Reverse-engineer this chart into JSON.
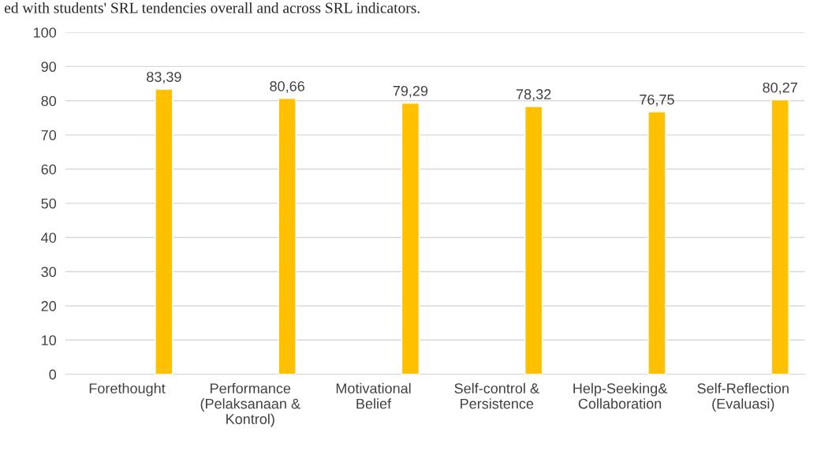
{
  "chart_data": {
    "type": "bar",
    "categories": [
      "Forethought",
      "Performance\n(Pelaksanaan &\nKontrol)",
      "Motivational\nBelief",
      "Self-control &\nPersistence",
      "Help-Seeking&\nCollaboration",
      "Self-Reflection\n(Evaluasi)"
    ],
    "values": [
      83.39,
      80.66,
      79.29,
      78.32,
      76.75,
      80.27
    ],
    "value_labels": [
      "83,39",
      "80,66",
      "79,29",
      "78,32",
      "76,75",
      "80,27"
    ],
    "color": "#ffc000",
    "ylim": [
      0,
      100
    ],
    "yticks": [
      0,
      10,
      20,
      30,
      40,
      50,
      60,
      70,
      80,
      90,
      100
    ],
    "grid": "y",
    "annotations": [
      "ed with students' SRL tendencies overall and across SRL indicators."
    ]
  }
}
